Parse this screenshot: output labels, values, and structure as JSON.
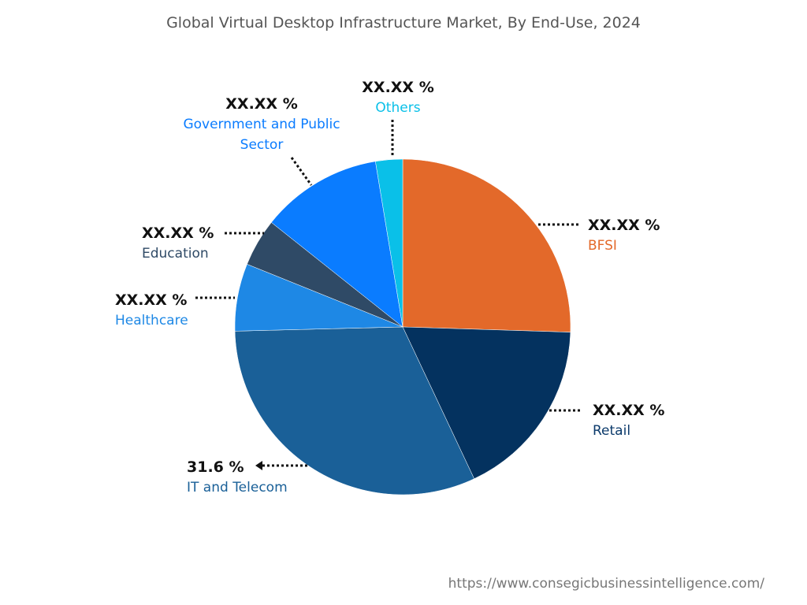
{
  "chart_data": {
    "type": "pie",
    "title": "Global Virtual Desktop Infrastructure Market, By End-Use, 2024",
    "categories": [
      "BFSI",
      "Retail",
      "IT and Telecom",
      "Healthcare",
      "Education",
      "Government and Public Sector",
      "Others"
    ],
    "values": [
      25.5,
      17.5,
      31.6,
      6.5,
      4.6,
      11.7,
      2.6
    ],
    "value_labels": [
      "XX.XX %",
      "XX.XX %",
      "31.6 %",
      "XX.XX %",
      "XX.XX %",
      "XX.XX %",
      "XX.XX %"
    ],
    "colors": [
      "#e3692a",
      "#04325f",
      "#1a6098",
      "#1e88e5",
      "#2f4a66",
      "#0a7cff",
      "#0ac0e8"
    ],
    "source": "https://www.consegicbusinessintelligence.com/"
  }
}
